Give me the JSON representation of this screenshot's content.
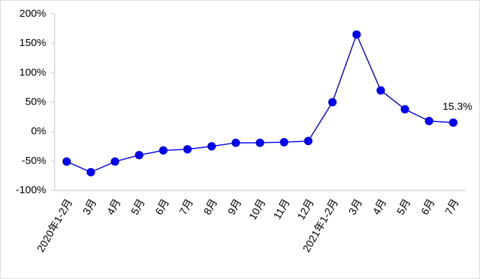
{
  "chart_data": {
    "type": "line",
    "categories": [
      "2020年1-2月",
      "3月",
      "4月",
      "5月",
      "6月",
      "7月",
      "8月",
      "9月",
      "10月",
      "11月",
      "12月",
      "2021年1-2月",
      "3月",
      "4月",
      "5月",
      "6月",
      "7月"
    ],
    "series": [
      {
        "color": "#0000ee",
        "values": [
          -51,
          -69,
          -51,
          -40,
          -32,
          -30,
          -25,
          -19,
          -19,
          -18,
          -16,
          50,
          165,
          70,
          38,
          18,
          15.3
        ],
        "value_labels": [
          null,
          null,
          null,
          null,
          null,
          null,
          null,
          null,
          null,
          null,
          null,
          null,
          null,
          null,
          null,
          null,
          "15.3%"
        ]
      }
    ],
    "ylim": [
      -100,
      200
    ],
    "yticks": [
      {
        "value": -100,
        "label": "-100%"
      },
      {
        "value": -50,
        "label": "-50%"
      },
      {
        "value": 0,
        "label": "0%"
      },
      {
        "value": 50,
        "label": "50%"
      },
      {
        "value": 100,
        "label": "100%"
      },
      {
        "value": 150,
        "label": "150%"
      },
      {
        "value": 200,
        "label": "200%"
      }
    ],
    "grid": false
  }
}
